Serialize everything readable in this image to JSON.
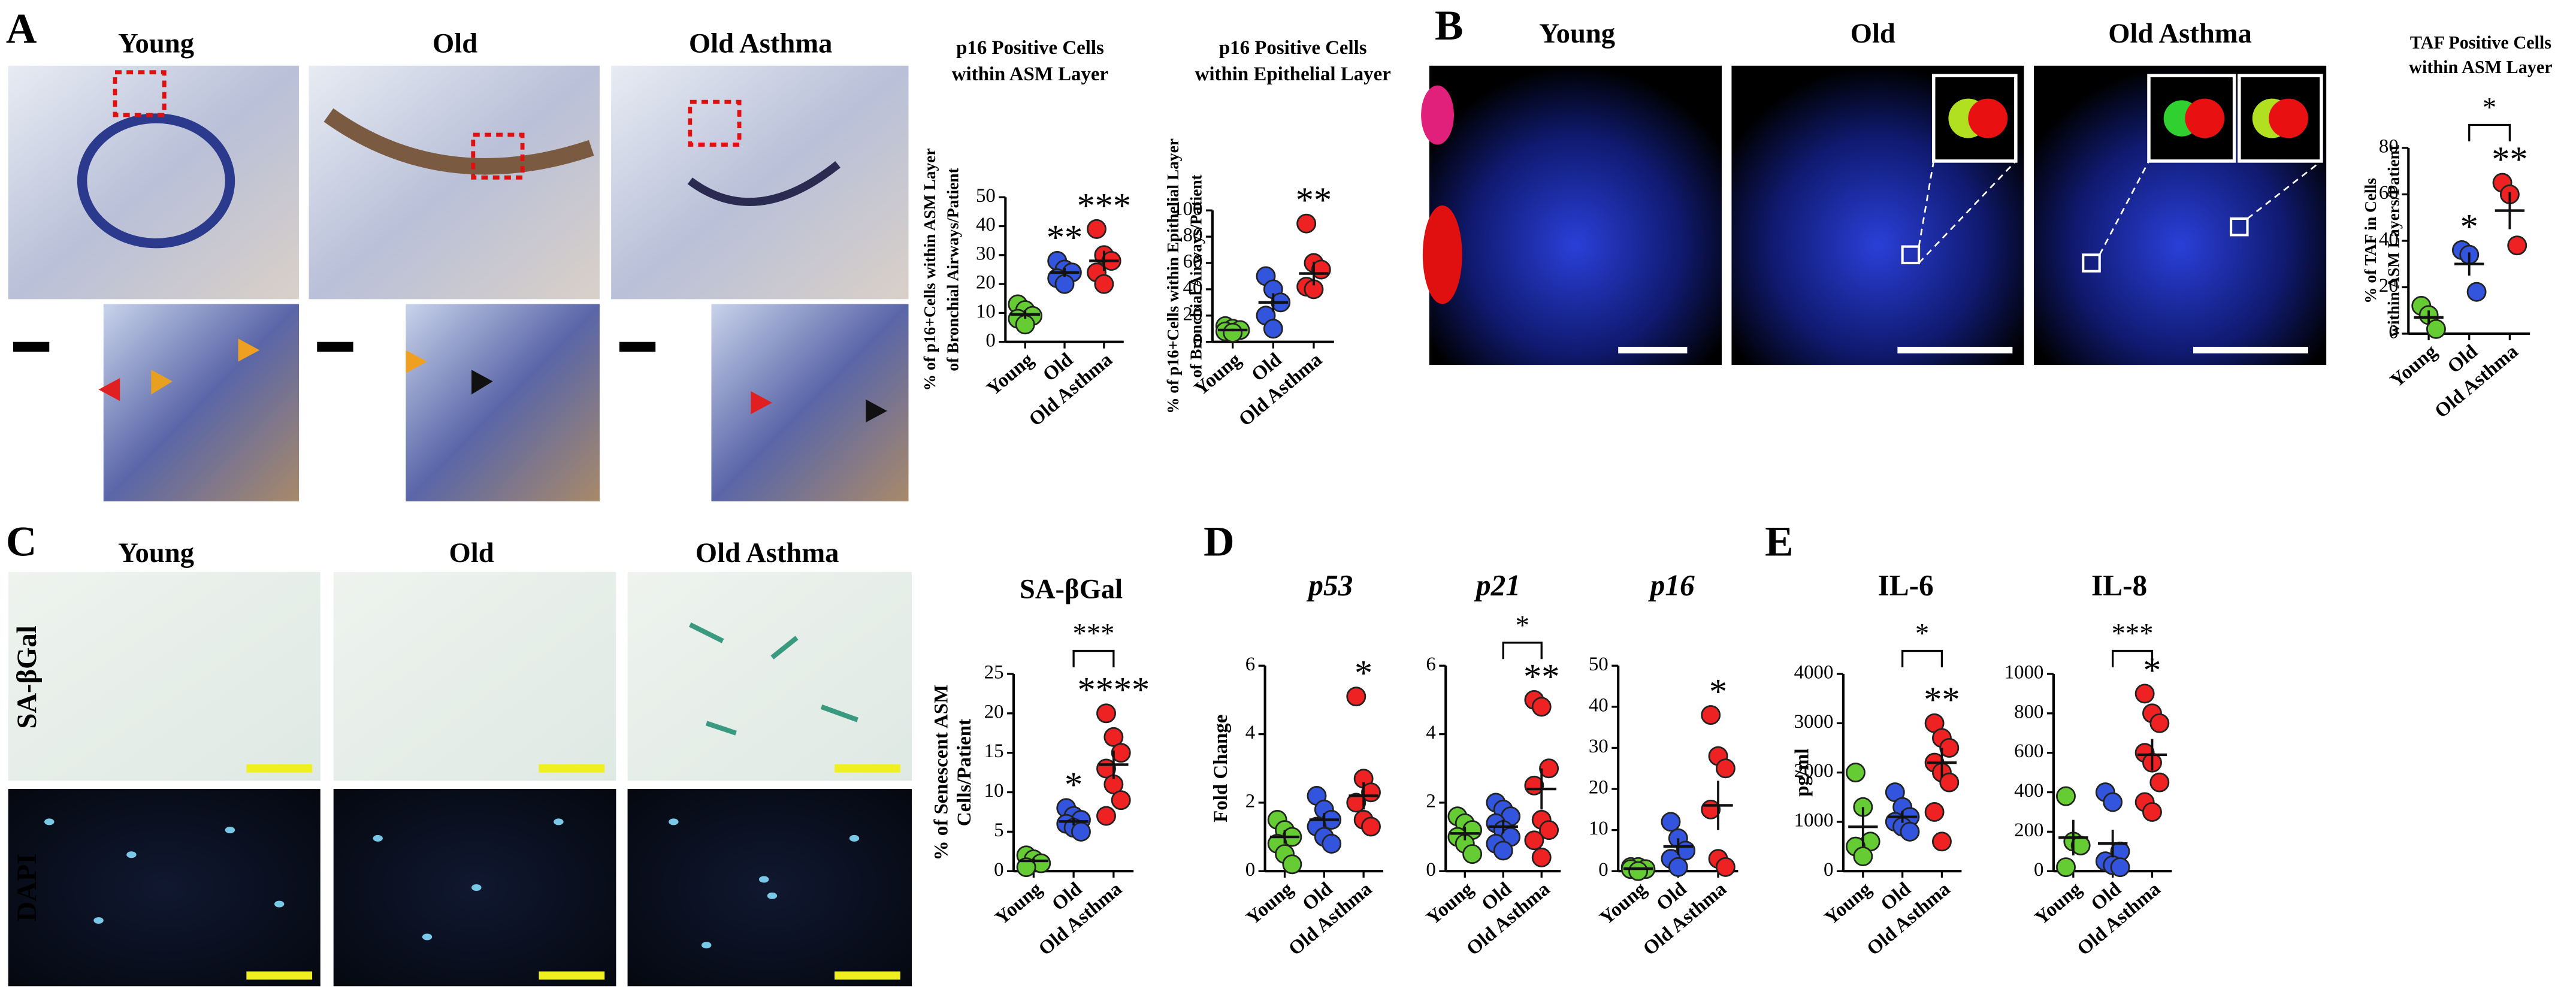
{
  "figure": {
    "letters": [
      "A",
      "B",
      "C",
      "D",
      "E"
    ],
    "a_columns": [
      "Young",
      "Old",
      "Old Asthma"
    ],
    "b_columns": [
      "Young",
      "Old",
      "Old Asthma"
    ],
    "c_columns": [
      "Young",
      "Old",
      "Old Asthma"
    ],
    "c_rows": [
      "SA-βGal",
      "DAPI"
    ]
  },
  "chart_data": [
    {
      "type": "dotplot",
      "title": [
        "p16 Positive Cells",
        "within ASM Layer"
      ],
      "ylabel": [
        "% of p16+Cells within ASM Layer",
        "of Bronchial Airways/Patient"
      ],
      "categories": [
        "Young",
        "Old",
        "Old Asthma"
      ],
      "colors": [
        "#66cc33",
        "#3355dd",
        "#ee2222"
      ],
      "values": [
        [
          13,
          11,
          9,
          8,
          6
        ],
        [
          28,
          25,
          24,
          22,
          20
        ],
        [
          39,
          30,
          28,
          24,
          20
        ]
      ],
      "means": [
        9.5,
        24,
        28
      ],
      "errors": [
        1.5,
        1.5,
        3.5
      ],
      "annotations": [
        null,
        "**",
        "***"
      ],
      "ylim": [
        0,
        50
      ],
      "yticks": [
        0,
        10,
        20,
        30,
        40,
        50
      ]
    },
    {
      "type": "dotplot",
      "title": [
        "p16 Positive Cells",
        "within Epithelial Layer"
      ],
      "ylabel": [
        "% of p16+Cells within Epithelial Layer",
        "of Bronchial Airways/Patient"
      ],
      "categories": [
        "Young",
        "Old",
        "Old Asthma"
      ],
      "colors": [
        "#66cc33",
        "#3355dd",
        "#ee2222"
      ],
      "values": [
        [
          12,
          10,
          9,
          8,
          7
        ],
        [
          50,
          40,
          30,
          20,
          10
        ],
        [
          90,
          60,
          55,
          42,
          40
        ]
      ],
      "means": [
        9,
        30,
        52
      ],
      "errors": [
        1,
        7,
        9
      ],
      "annotations": [
        null,
        null,
        "**"
      ],
      "ylim": [
        0,
        100
      ],
      "yticks": [
        0,
        20,
        40,
        60,
        80,
        100
      ]
    },
    {
      "type": "dotplot",
      "title": [
        "TAF Positive Cells",
        "within ASM Layer"
      ],
      "ylabel": [
        "% of TAF in Cells",
        "within ASM Layers/Patient"
      ],
      "categories": [
        "Young",
        "Old",
        "Old Asthma"
      ],
      "colors": [
        "#66cc33",
        "#3355dd",
        "#ee2222"
      ],
      "values": [
        [
          12,
          8,
          2
        ],
        [
          36,
          34,
          18
        ],
        [
          65,
          60,
          38
        ]
      ],
      "means": [
        7,
        30,
        53
      ],
      "errors": [
        3,
        5,
        8
      ],
      "annotations": [
        null,
        "*",
        "**"
      ],
      "bracket": {
        "from": 1,
        "to": 2,
        "label": "*"
      },
      "ylim": [
        0,
        80
      ],
      "yticks": [
        0,
        20,
        40,
        60,
        80
      ]
    },
    {
      "type": "dotplot",
      "title": [
        "SA-βGal"
      ],
      "ylabel": [
        "% of Senescent ASM",
        "Cells/Patient"
      ],
      "categories": [
        "Young",
        "Old",
        "Old Asthma"
      ],
      "colors": [
        "#66cc33",
        "#3355dd",
        "#ee2222"
      ],
      "values": [
        [
          2,
          1.5,
          1,
          0.5
        ],
        [
          8,
          7,
          6.5,
          6,
          5.5,
          5
        ],
        [
          20,
          17,
          15,
          13,
          11,
          9,
          7
        ]
      ],
      "means": [
        1.3,
        6.3,
        13.5
      ],
      "errors": [
        0.3,
        0.5,
        1.8
      ],
      "annotations": [
        null,
        "*",
        "****"
      ],
      "bracket": {
        "from": 1,
        "to": 2,
        "label": "***"
      },
      "ylim": [
        0,
        25
      ],
      "yticks": [
        0,
        5,
        10,
        15,
        20,
        25
      ]
    },
    {
      "type": "dotplot",
      "title": [
        "p53"
      ],
      "italic": true,
      "ylabel": [
        "Fold Change"
      ],
      "categories": [
        "Young",
        "Old",
        "Old Asthma"
      ],
      "colors": [
        "#66cc33",
        "#3355dd",
        "#ee2222"
      ],
      "values": [
        [
          1.5,
          1.2,
          1.0,
          0.8,
          0.5,
          0.2
        ],
        [
          2.2,
          1.8,
          1.5,
          1.3,
          1.0,
          0.8
        ],
        [
          5.1,
          2.7,
          2.3,
          2.0,
          1.5,
          1.3
        ]
      ],
      "means": [
        1.0,
        1.5,
        2.2
      ],
      "errors": [
        0.2,
        0.2,
        0.4
      ],
      "annotations": [
        null,
        null,
        "*"
      ],
      "ylim": [
        0,
        6
      ],
      "yticks": [
        0,
        2,
        4,
        6
      ]
    },
    {
      "type": "dotplot",
      "title": [
        "p21"
      ],
      "italic": true,
      "categories": [
        "Young",
        "Old",
        "Old Asthma"
      ],
      "colors": [
        "#66cc33",
        "#3355dd",
        "#ee2222"
      ],
      "values": [
        [
          1.6,
          1.4,
          1.2,
          1.0,
          0.8,
          0.5
        ],
        [
          2.0,
          1.8,
          1.6,
          1.4,
          1.2,
          1.0,
          0.8,
          0.6
        ],
        [
          5.0,
          4.8,
          3.0,
          2.5,
          1.5,
          1.2,
          0.9,
          0.4
        ]
      ],
      "means": [
        1.1,
        1.3,
        2.4
      ],
      "errors": [
        0.2,
        0.2,
        0.6
      ],
      "annotations": [
        null,
        null,
        "**"
      ],
      "bracket": {
        "from": 1,
        "to": 2,
        "label": "*"
      },
      "ylim": [
        0,
        6
      ],
      "yticks": [
        0,
        2,
        4,
        6
      ]
    },
    {
      "type": "dotplot",
      "title": [
        "p16"
      ],
      "italic": true,
      "categories": [
        "Young",
        "Old",
        "Old Asthma"
      ],
      "colors": [
        "#66cc33",
        "#3355dd",
        "#ee2222"
      ],
      "values": [
        [
          1,
          1,
          0.5,
          0.5,
          0
        ],
        [
          12,
          8,
          5,
          3,
          1
        ],
        [
          38,
          28,
          25,
          15,
          3,
          1
        ]
      ],
      "means": [
        0.6,
        6,
        16
      ],
      "errors": [
        0.2,
        2,
        6
      ],
      "annotations": [
        null,
        null,
        "*"
      ],
      "ylim": [
        0,
        50
      ],
      "yticks": [
        0,
        10,
        20,
        30,
        40,
        50
      ]
    },
    {
      "type": "dotplot",
      "title": [
        "IL-6"
      ],
      "ylabel": [
        "pg/ml"
      ],
      "categories": [
        "Young",
        "Old",
        "Old Asthma"
      ],
      "colors": [
        "#66cc33",
        "#3355dd",
        "#ee2222"
      ],
      "values": [
        [
          2000,
          1300,
          600,
          500,
          300
        ],
        [
          1600,
          1300,
          1100,
          1000,
          900,
          800
        ],
        [
          3000,
          2700,
          2500,
          2200,
          2000,
          1800,
          1200,
          600
        ]
      ],
      "means": [
        900,
        1100,
        2200
      ],
      "errors": [
        400,
        120,
        300
      ],
      "annotations": [
        null,
        null,
        "**"
      ],
      "bracket": {
        "from": 1,
        "to": 2,
        "label": "*"
      },
      "ylim": [
        0,
        4000
      ],
      "yticks": [
        0,
        1000,
        2000,
        3000,
        4000
      ]
    },
    {
      "type": "dotplot",
      "title": [
        "IL-8"
      ],
      "categories": [
        "Young",
        "Old",
        "Old Asthma"
      ],
      "colors": [
        "#66cc33",
        "#3355dd",
        "#ee2222"
      ],
      "values": [
        [
          380,
          150,
          130,
          20
        ],
        [
          400,
          350,
          100,
          50,
          30,
          20
        ],
        [
          900,
          800,
          750,
          600,
          550,
          450,
          350,
          300
        ]
      ],
      "means": [
        170,
        140,
        590
      ],
      "errors": [
        90,
        70,
        80
      ],
      "annotations": [
        null,
        null,
        "*"
      ],
      "bracket": {
        "from": 1,
        "to": 2,
        "label": "***"
      },
      "ylim": [
        0,
        1000
      ],
      "yticks": [
        0,
        200,
        400,
        600,
        800,
        1000
      ]
    }
  ]
}
